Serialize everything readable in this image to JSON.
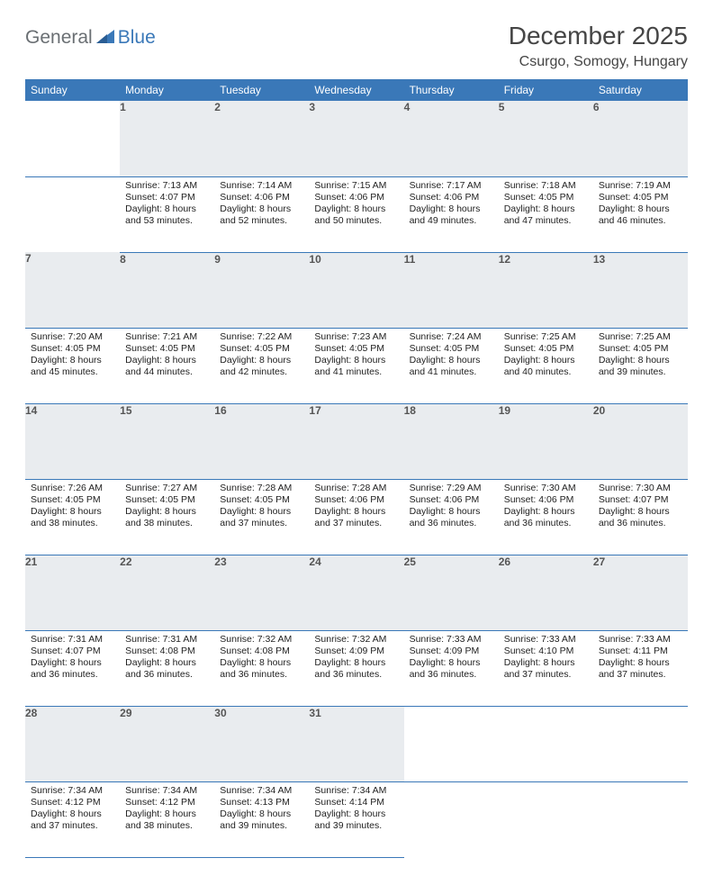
{
  "logo": {
    "general": "General",
    "blue": "Blue"
  },
  "title": "December 2025",
  "location": "Csurgo, Somogy, Hungary",
  "colors": {
    "header_bg": "#3a78b8",
    "header_text": "#ffffff",
    "daynum_bg": "#e9ecef",
    "daynum_text": "#555555",
    "body_text": "#222222",
    "rule": "#3a78b8",
    "logo_gray": "#6a6f73",
    "logo_blue": "#3a78b8",
    "title_color": "#454545"
  },
  "typography": {
    "title_fontsize": 28,
    "location_fontsize": 16,
    "header_fontsize": 12,
    "daynum_fontsize": 12,
    "body_fontsize": 10.5
  },
  "weekdays": [
    "Sunday",
    "Monday",
    "Tuesday",
    "Wednesday",
    "Thursday",
    "Friday",
    "Saturday"
  ],
  "weeks": [
    {
      "nums": [
        "",
        "1",
        "2",
        "3",
        "4",
        "5",
        "6"
      ],
      "cells": [
        null,
        {
          "sunrise": "Sunrise: 7:13 AM",
          "sunset": "Sunset: 4:07 PM",
          "day1": "Daylight: 8 hours",
          "day2": "and 53 minutes."
        },
        {
          "sunrise": "Sunrise: 7:14 AM",
          "sunset": "Sunset: 4:06 PM",
          "day1": "Daylight: 8 hours",
          "day2": "and 52 minutes."
        },
        {
          "sunrise": "Sunrise: 7:15 AM",
          "sunset": "Sunset: 4:06 PM",
          "day1": "Daylight: 8 hours",
          "day2": "and 50 minutes."
        },
        {
          "sunrise": "Sunrise: 7:17 AM",
          "sunset": "Sunset: 4:06 PM",
          "day1": "Daylight: 8 hours",
          "day2": "and 49 minutes."
        },
        {
          "sunrise": "Sunrise: 7:18 AM",
          "sunset": "Sunset: 4:05 PM",
          "day1": "Daylight: 8 hours",
          "day2": "and 47 minutes."
        },
        {
          "sunrise": "Sunrise: 7:19 AM",
          "sunset": "Sunset: 4:05 PM",
          "day1": "Daylight: 8 hours",
          "day2": "and 46 minutes."
        }
      ]
    },
    {
      "nums": [
        "7",
        "8",
        "9",
        "10",
        "11",
        "12",
        "13"
      ],
      "cells": [
        {
          "sunrise": "Sunrise: 7:20 AM",
          "sunset": "Sunset: 4:05 PM",
          "day1": "Daylight: 8 hours",
          "day2": "and 45 minutes."
        },
        {
          "sunrise": "Sunrise: 7:21 AM",
          "sunset": "Sunset: 4:05 PM",
          "day1": "Daylight: 8 hours",
          "day2": "and 44 minutes."
        },
        {
          "sunrise": "Sunrise: 7:22 AM",
          "sunset": "Sunset: 4:05 PM",
          "day1": "Daylight: 8 hours",
          "day2": "and 42 minutes."
        },
        {
          "sunrise": "Sunrise: 7:23 AM",
          "sunset": "Sunset: 4:05 PM",
          "day1": "Daylight: 8 hours",
          "day2": "and 41 minutes."
        },
        {
          "sunrise": "Sunrise: 7:24 AM",
          "sunset": "Sunset: 4:05 PM",
          "day1": "Daylight: 8 hours",
          "day2": "and 41 minutes."
        },
        {
          "sunrise": "Sunrise: 7:25 AM",
          "sunset": "Sunset: 4:05 PM",
          "day1": "Daylight: 8 hours",
          "day2": "and 40 minutes."
        },
        {
          "sunrise": "Sunrise: 7:25 AM",
          "sunset": "Sunset: 4:05 PM",
          "day1": "Daylight: 8 hours",
          "day2": "and 39 minutes."
        }
      ]
    },
    {
      "nums": [
        "14",
        "15",
        "16",
        "17",
        "18",
        "19",
        "20"
      ],
      "cells": [
        {
          "sunrise": "Sunrise: 7:26 AM",
          "sunset": "Sunset: 4:05 PM",
          "day1": "Daylight: 8 hours",
          "day2": "and 38 minutes."
        },
        {
          "sunrise": "Sunrise: 7:27 AM",
          "sunset": "Sunset: 4:05 PM",
          "day1": "Daylight: 8 hours",
          "day2": "and 38 minutes."
        },
        {
          "sunrise": "Sunrise: 7:28 AM",
          "sunset": "Sunset: 4:05 PM",
          "day1": "Daylight: 8 hours",
          "day2": "and 37 minutes."
        },
        {
          "sunrise": "Sunrise: 7:28 AM",
          "sunset": "Sunset: 4:06 PM",
          "day1": "Daylight: 8 hours",
          "day2": "and 37 minutes."
        },
        {
          "sunrise": "Sunrise: 7:29 AM",
          "sunset": "Sunset: 4:06 PM",
          "day1": "Daylight: 8 hours",
          "day2": "and 36 minutes."
        },
        {
          "sunrise": "Sunrise: 7:30 AM",
          "sunset": "Sunset: 4:06 PM",
          "day1": "Daylight: 8 hours",
          "day2": "and 36 minutes."
        },
        {
          "sunrise": "Sunrise: 7:30 AM",
          "sunset": "Sunset: 4:07 PM",
          "day1": "Daylight: 8 hours",
          "day2": "and 36 minutes."
        }
      ]
    },
    {
      "nums": [
        "21",
        "22",
        "23",
        "24",
        "25",
        "26",
        "27"
      ],
      "cells": [
        {
          "sunrise": "Sunrise: 7:31 AM",
          "sunset": "Sunset: 4:07 PM",
          "day1": "Daylight: 8 hours",
          "day2": "and 36 minutes."
        },
        {
          "sunrise": "Sunrise: 7:31 AM",
          "sunset": "Sunset: 4:08 PM",
          "day1": "Daylight: 8 hours",
          "day2": "and 36 minutes."
        },
        {
          "sunrise": "Sunrise: 7:32 AM",
          "sunset": "Sunset: 4:08 PM",
          "day1": "Daylight: 8 hours",
          "day2": "and 36 minutes."
        },
        {
          "sunrise": "Sunrise: 7:32 AM",
          "sunset": "Sunset: 4:09 PM",
          "day1": "Daylight: 8 hours",
          "day2": "and 36 minutes."
        },
        {
          "sunrise": "Sunrise: 7:33 AM",
          "sunset": "Sunset: 4:09 PM",
          "day1": "Daylight: 8 hours",
          "day2": "and 36 minutes."
        },
        {
          "sunrise": "Sunrise: 7:33 AM",
          "sunset": "Sunset: 4:10 PM",
          "day1": "Daylight: 8 hours",
          "day2": "and 37 minutes."
        },
        {
          "sunrise": "Sunrise: 7:33 AM",
          "sunset": "Sunset: 4:11 PM",
          "day1": "Daylight: 8 hours",
          "day2": "and 37 minutes."
        }
      ]
    },
    {
      "nums": [
        "28",
        "29",
        "30",
        "31",
        "",
        "",
        ""
      ],
      "cells": [
        {
          "sunrise": "Sunrise: 7:34 AM",
          "sunset": "Sunset: 4:12 PM",
          "day1": "Daylight: 8 hours",
          "day2": "and 37 minutes."
        },
        {
          "sunrise": "Sunrise: 7:34 AM",
          "sunset": "Sunset: 4:12 PM",
          "day1": "Daylight: 8 hours",
          "day2": "and 38 minutes."
        },
        {
          "sunrise": "Sunrise: 7:34 AM",
          "sunset": "Sunset: 4:13 PM",
          "day1": "Daylight: 8 hours",
          "day2": "and 39 minutes."
        },
        {
          "sunrise": "Sunrise: 7:34 AM",
          "sunset": "Sunset: 4:14 PM",
          "day1": "Daylight: 8 hours",
          "day2": "and 39 minutes."
        },
        null,
        null,
        null
      ]
    }
  ]
}
